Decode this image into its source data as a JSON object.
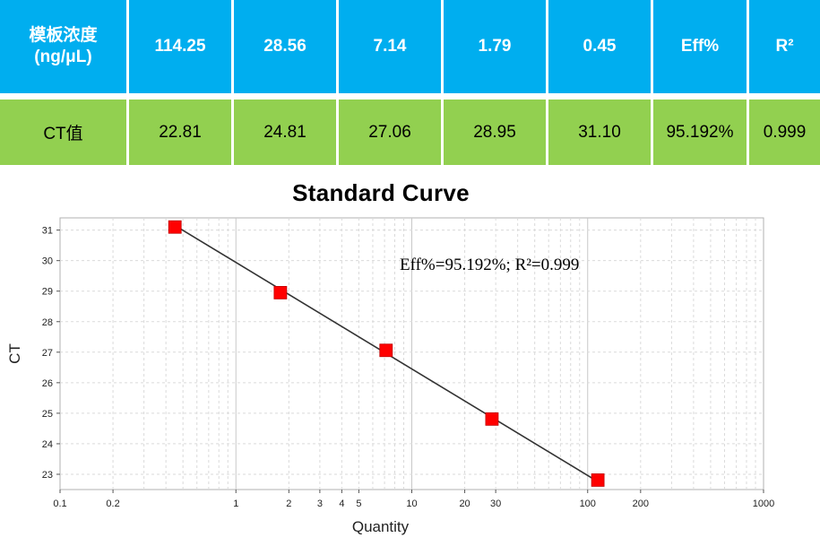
{
  "table": {
    "header": [
      "模板浓度\n(ng/μL)",
      "114.25",
      "28.56",
      "7.14",
      "1.79",
      "0.45",
      "Eff%",
      "R²"
    ],
    "ct_row": [
      "CT值",
      "22.81",
      "24.81",
      "27.06",
      "28.95",
      "31.10",
      "95.192%",
      "0.999"
    ]
  },
  "colors": {
    "header_bg": "#00aeef",
    "row_bg": "#92d050",
    "marker": "#ff0000",
    "line": "#333333"
  },
  "chart_data": {
    "type": "scatter",
    "title": "Standard Curve",
    "xlabel": "Quantity",
    "ylabel": "CT",
    "x_scale": "log",
    "xlim": [
      0.1,
      1000
    ],
    "ylim": [
      22.5,
      31.4
    ],
    "x_ticks": [
      "0.1",
      "0.2",
      "1",
      "2",
      "3",
      "4",
      "5",
      "10",
      "20",
      "30",
      "100",
      "200",
      "1000"
    ],
    "y_ticks": [
      "23",
      "24",
      "25",
      "26",
      "27",
      "28",
      "29",
      "30",
      "31"
    ],
    "grid": true,
    "series": [
      {
        "x": [
          114.25,
          28.56,
          7.14,
          1.79,
          0.45
        ],
        "y": [
          22.81,
          24.81,
          27.06,
          28.95,
          31.1
        ]
      }
    ],
    "fit_line": {
      "x": [
        0.45,
        114.25
      ],
      "y": [
        31.15,
        22.76
      ]
    },
    "annotation": "Eff%=95.192%; R²=0.999"
  }
}
